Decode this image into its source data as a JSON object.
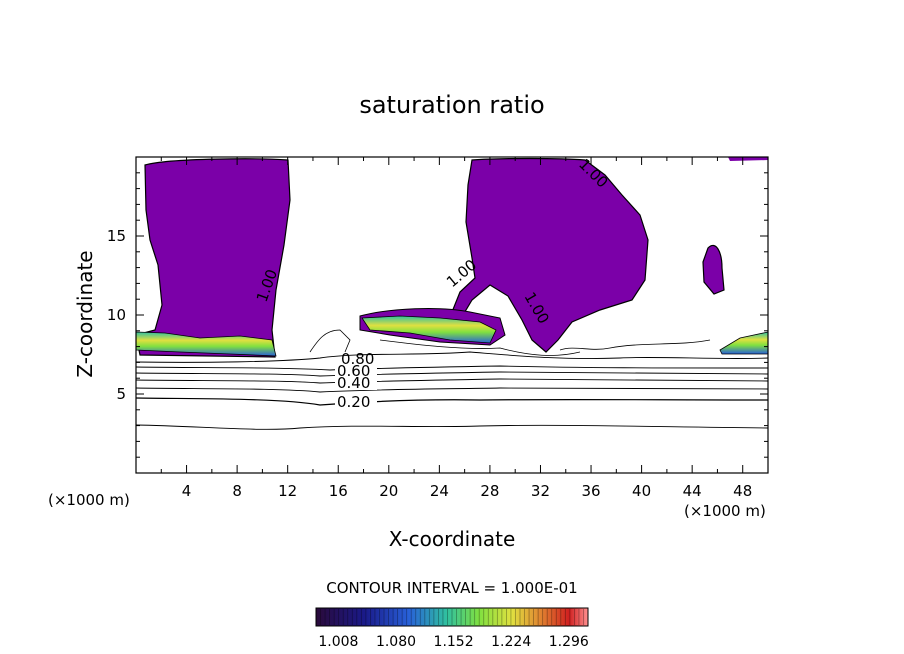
{
  "chart_data": {
    "type": "contour",
    "title": "saturation ratio",
    "xlabel": "X-coordinate",
    "ylabel": "Z-coordinate",
    "x_unit_left": "(×1000 m)",
    "x_unit_right": "(×1000 m)",
    "xlim": [
      0,
      50
    ],
    "ylim": [
      0,
      20
    ],
    "xticks": [
      4,
      8,
      12,
      16,
      20,
      24,
      28,
      32,
      36,
      40,
      44,
      48
    ],
    "yticks": [
      5,
      10,
      15
    ],
    "contour_interval_text": "CONTOUR INTERVAL = 1.000E-01",
    "contour_labels": [
      "0.20",
      "0.40",
      "0.60",
      "0.80",
      "1.00",
      "1.00",
      "1.00",
      "1.00"
    ],
    "colorbar": {
      "ticks": [
        "1.008",
        "1.080",
        "1.152",
        "1.224",
        "1.296"
      ],
      "range": [
        0.98,
        1.32
      ],
      "colors": [
        "#2a0a3a",
        "#1a1a8a",
        "#2860d8",
        "#30c0a0",
        "#80e040",
        "#e0e040",
        "#e08030",
        "#d02020",
        "#ff9090"
      ]
    }
  }
}
